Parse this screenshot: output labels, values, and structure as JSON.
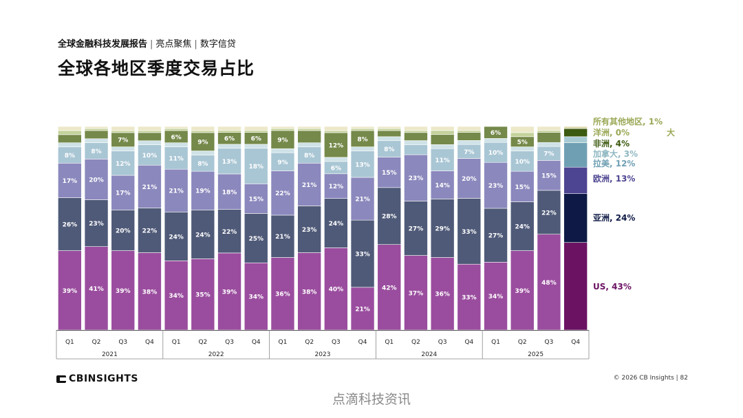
{
  "header": {
    "report": "全球金融科技发展报告",
    "section": "亮点聚焦",
    "topic": "数字信贷"
  },
  "page_title": "全球各地区季度交易占比",
  "chart_data": {
    "type": "bar",
    "stacked": true,
    "normalized_percent": true,
    "title": "全球各地区季度交易占比",
    "categories": [
      "2021 Q1",
      "2021 Q2",
      "2021 Q3",
      "2021 Q4",
      "2022 Q1",
      "2022 Q2",
      "2022 Q3",
      "2022 Q4",
      "2023 Q1",
      "2023 Q2",
      "2023 Q3",
      "2023 Q4",
      "2024 Q1",
      "2024 Q2",
      "2024 Q3",
      "2024 Q4",
      "2025 Q1",
      "2025 Q2",
      "2025 Q3",
      "2025 Q4"
    ],
    "quarters": [
      "Q1",
      "Q2",
      "Q3",
      "Q4",
      "Q1",
      "Q2",
      "Q3",
      "Q4",
      "Q1",
      "Q2",
      "Q3",
      "Q4",
      "Q1",
      "Q2",
      "Q3",
      "Q4",
      "Q1",
      "Q2",
      "Q3",
      "Q4"
    ],
    "years": [
      "2021",
      "2022",
      "2023",
      "2024",
      "2025"
    ],
    "series": [
      {
        "name": "US",
        "legend": "US, 43%",
        "color": "#9a4d9e",
        "last_color": "#6b1263",
        "label_color": "#ffffff",
        "values": [
          39,
          41,
          39,
          38,
          34,
          35,
          39,
          34,
          36,
          38,
          40,
          21,
          42,
          37,
          36,
          33,
          34,
          39,
          48,
          43
        ],
        "labels": [
          "39%",
          "41%",
          "39%",
          "38%",
          "34%",
          "35%",
          "39%",
          "34%",
          "36%",
          "38%",
          "40%",
          "21%",
          "42%",
          "37%",
          "36%",
          "33%",
          "34%",
          "39%",
          "48%",
          ""
        ]
      },
      {
        "name": "亚洲",
        "legend": "亚洲, 24%",
        "color": "#4f5a78",
        "last_color": "#0e1a45",
        "label_color": "#ffffff",
        "values": [
          26,
          23,
          20,
          22,
          24,
          24,
          22,
          25,
          21,
          23,
          24,
          33,
          28,
          27,
          29,
          33,
          27,
          24,
          22,
          24
        ],
        "labels": [
          "26%",
          "23%",
          "20%",
          "22%",
          "24%",
          "24%",
          "22%",
          "25%",
          "21%",
          "23%",
          "24%",
          "33%",
          "28%",
          "27%",
          "29%",
          "33%",
          "27%",
          "24%",
          "22%",
          ""
        ]
      },
      {
        "name": "欧洲",
        "legend": "欧洲, 13%",
        "color": "#8b88bd",
        "last_color": "#4d4591",
        "label_color": "#ffffff",
        "values": [
          17,
          20,
          17,
          21,
          21,
          19,
          18,
          15,
          22,
          21,
          12,
          21,
          15,
          23,
          14,
          20,
          23,
          15,
          15,
          13
        ],
        "labels": [
          "17%",
          "20%",
          "17%",
          "21%",
          "21%",
          "19%",
          "18%",
          "15%",
          "22%",
          "21%",
          "12%",
          "21%",
          "15%",
          "23%",
          "14%",
          "20%",
          "23%",
          "15%",
          "15%",
          ""
        ]
      },
      {
        "name": "拉美",
        "legend": "拉美, 12%",
        "color": "#a9c6d4",
        "last_color": "#6f9fb3",
        "label_color": "#ffffff",
        "values": [
          8,
          8,
          12,
          10,
          11,
          8,
          13,
          18,
          9,
          8,
          6,
          13,
          8,
          5,
          11,
          7,
          10,
          10,
          7,
          12
        ],
        "labels": [
          "8%",
          "8%",
          "12%",
          "10%",
          "11%",
          "8%",
          "13%",
          "18%",
          "9%",
          "8%",
          "6%",
          "13%",
          "8%",
          "",
          "11%",
          "7%",
          "10%",
          "10%",
          "7%",
          ""
        ]
      },
      {
        "name": "加拿大",
        "legend": "加拿大, 3%",
        "color": "#cfe2e7",
        "last_color": "#a8cbd3",
        "values": [
          2,
          2,
          2,
          2,
          2,
          2,
          2,
          2,
          2,
          2,
          2,
          2,
          2,
          2,
          2,
          2,
          2,
          2,
          2,
          3
        ],
        "labels": [
          "",
          "",
          "",
          "",
          "",
          "",
          "",
          "",
          "",
          "",
          "",
          "",
          "",
          "",
          "",
          "",
          "",
          "",
          "",
          ""
        ]
      },
      {
        "name": "非洲",
        "legend": "非洲, 4%",
        "color": "#75894a",
        "last_color": "#3c5a10",
        "label_color": "#ffffff",
        "values": [
          4,
          4,
          7,
          4,
          6,
          9,
          6,
          6,
          9,
          6,
          12,
          8,
          3,
          4,
          5,
          4,
          6,
          5,
          5,
          4
        ],
        "labels": [
          "",
          "",
          "7%",
          "",
          "6%",
          "9%",
          "6%",
          "6%",
          "9%",
          "",
          "12%",
          "8%",
          "",
          "",
          "",
          "",
          "6%",
          "5%",
          "",
          ""
        ]
      },
      {
        "name": "大洋洲",
        "legend": "大洋洲, 0%",
        "color": "#c4d29b",
        "last_color": "#a6b877",
        "values": [
          2,
          1,
          1,
          1,
          1,
          1,
          1,
          1,
          1,
          1,
          1,
          1,
          1,
          1,
          2,
          1,
          0,
          2,
          1,
          0
        ],
        "labels": [
          "",
          "",
          "",
          "",
          "",
          "",
          "",
          "",
          "",
          "",
          "",
          "",
          "",
          "",
          "",
          "",
          "",
          "",
          "",
          ""
        ]
      },
      {
        "name": "所有其他地区",
        "legend": "所有其他地区, 1%",
        "color": "#ece8c8",
        "last_color": "#dcd6a8",
        "values": [
          2,
          1,
          2,
          2,
          1,
          2,
          2,
          2,
          1,
          1,
          2,
          1,
          1,
          2,
          2,
          2,
          0,
          3,
          2,
          1
        ],
        "labels": [
          "",
          "",
          "",
          "",
          "",
          "",
          "",
          "",
          "",
          "",
          "",
          "",
          "",
          "",
          "",
          "",
          "",
          "",
          "",
          ""
        ]
      }
    ],
    "legend_labels": [
      {
        "text": "所有其他地区, 1%",
        "color": "#9aa855"
      },
      {
        "text": "大",
        "color": "#9aa855"
      },
      {
        "text": "洋洲, 0%",
        "color": "#9aa855"
      },
      {
        "text": "非洲, 4%",
        "color": "#3c5a10"
      },
      {
        "text": "加拿大, 3%",
        "color": "#8fb8c2"
      },
      {
        "text": "拉美, 12%",
        "color": "#6f9fb3"
      },
      {
        "text": "欧洲, 13%",
        "color": "#4d4591"
      },
      {
        "text": "亚洲, 24%",
        "color": "#0e1a45"
      },
      {
        "text": "US, 43%",
        "color": "#6b1263"
      }
    ],
    "legend_placement": "right"
  },
  "footer": {
    "logo": "CBINSIGHTS",
    "copyright": "© 2026 CB Insights",
    "page": "82"
  },
  "watermark": "点滴科技资讯"
}
